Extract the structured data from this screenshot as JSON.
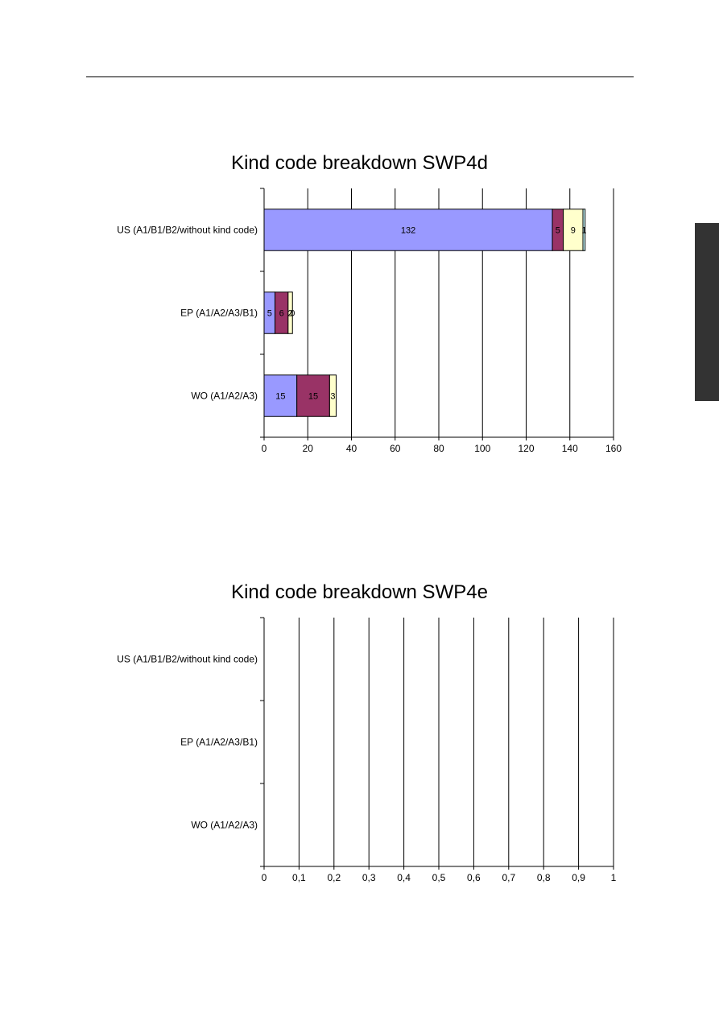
{
  "page": {
    "side_tab_color": "#333333"
  },
  "chart_data": [
    {
      "type": "bar",
      "orientation": "horizontal",
      "stacked": true,
      "title": "Kind code breakdown SWP4d",
      "categories": [
        "US (A1/B1/B2/without kind code)",
        "EP (A1/A2/A3/B1)",
        "WO (A1/A2/A3)"
      ],
      "series": [
        {
          "values": [
            132,
            5,
            15
          ],
          "color": "#9999FF"
        },
        {
          "values": [
            5,
            6,
            15
          ],
          "color": "#993366"
        },
        {
          "values": [
            9,
            2,
            3
          ],
          "color": "#FFFFCC"
        },
        {
          "values": [
            1,
            0,
            0
          ],
          "color": "#CCFFFF"
        }
      ],
      "data_labels": [
        [
          "132",
          "5",
          "9",
          "1"
        ],
        [
          "5",
          "6",
          "2",
          "0"
        ],
        [
          "15",
          "15",
          "3",
          ""
        ]
      ],
      "xlim": [
        0,
        160
      ],
      "xticks": [
        0,
        20,
        40,
        60,
        80,
        100,
        120,
        140,
        160
      ],
      "xtick_labels": [
        "0",
        "20",
        "40",
        "60",
        "80",
        "100",
        "120",
        "140",
        "160"
      ],
      "grid": "vertical",
      "legend": "none"
    },
    {
      "type": "bar",
      "orientation": "horizontal",
      "stacked": true,
      "title": "Kind code breakdown SWP4e",
      "categories": [
        "US (A1/B1/B2/without kind code)",
        "EP (A1/A2/A3/B1)",
        "WO (A1/A2/A3)"
      ],
      "series": [],
      "data_labels": [],
      "xlim": [
        0,
        1
      ],
      "xticks": [
        0,
        0.1,
        0.2,
        0.3,
        0.4,
        0.5,
        0.6,
        0.7,
        0.8,
        0.9,
        1
      ],
      "xtick_labels": [
        "0",
        "0,1",
        "0,2",
        "0,3",
        "0,4",
        "0,5",
        "0,6",
        "0,7",
        "0,8",
        "0,9",
        "1"
      ],
      "grid": "vertical",
      "legend": "none"
    }
  ]
}
